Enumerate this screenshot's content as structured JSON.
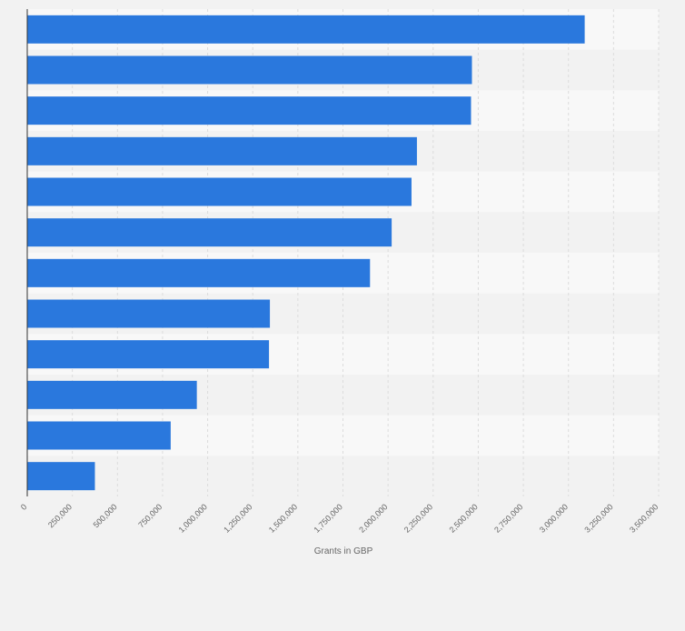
{
  "chart_data": {
    "type": "bar",
    "orientation": "horizontal",
    "title": "",
    "xlabel": "Grants in GBP",
    "ylabel": "",
    "xlim": [
      0,
      3500000
    ],
    "ticks": [
      0,
      250000,
      500000,
      750000,
      1000000,
      1250000,
      1500000,
      1750000,
      2000000,
      2250000,
      2500000,
      2750000,
      3000000,
      3250000,
      3500000
    ],
    "tick_labels": [
      "0",
      "250,000",
      "500,000",
      "750,000",
      "1,000,000",
      "1,250,000",
      "1,500,000",
      "1,750,000",
      "2,000,000",
      "2,250,000",
      "2,500,000",
      "2,750,000",
      "3,000,000",
      "3,250,000",
      "3,500,000"
    ],
    "categories": [
      "",
      "",
      "",
      "",
      "",
      "",
      "",
      "",
      "",
      "",
      "",
      ""
    ],
    "values": [
      3090000,
      2465000,
      2460000,
      2160000,
      2130000,
      2020000,
      1900000,
      1345000,
      1340000,
      940000,
      795000,
      375000
    ],
    "grid": true,
    "colors": {
      "bar": "#2a78dd",
      "background": "#f2f2f2",
      "band_light": "#f8f8f8",
      "band_dark": "#f2f2f2",
      "grid": "#dcdcdc",
      "axis": "#333333",
      "text": "#666666"
    }
  }
}
